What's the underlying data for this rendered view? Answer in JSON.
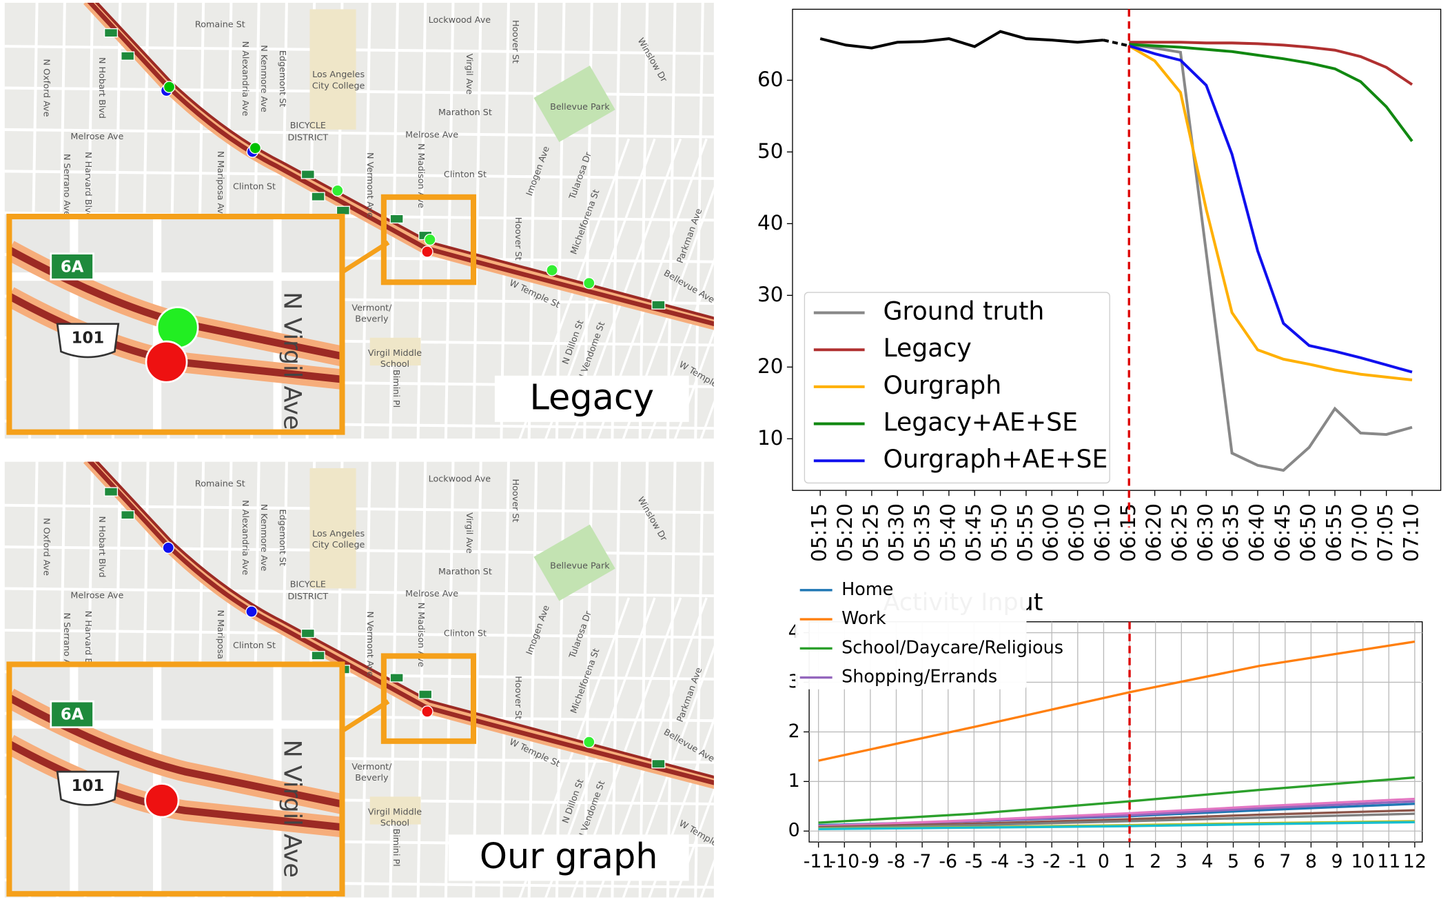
{
  "maps": {
    "streets": [
      "Romaine St",
      "Lockwood Ave",
      "N Oxford Ave",
      "N Hobart Blvd",
      "N Kenmore Ave",
      "N Alexandria Ave",
      "Edgemont St",
      "Los Angeles",
      "City College",
      "Hoover St",
      "Virgil Ave",
      "Winslow Dr",
      "Marathon St",
      "Bellevue Park",
      "BICYCLE",
      "DISTRICT",
      "Melrose Ave",
      "N Serrano Ave",
      "N Harvard Blvd",
      "N Mariposa Ave",
      "N Vermont Ave",
      "N Madison Ave",
      "Clinton St",
      "Imogen Ave",
      "Tularosa Dr",
      "Michelforena St",
      "Parkman Ave",
      "Vermont/",
      "Beverly",
      "W Temple St",
      "Virgil Middle",
      "School",
      "N Dillon St",
      "N Vendome St",
      "Bellevue Ave",
      "W Temple",
      "Bimini Pl"
    ],
    "inset_street": "N Virgil Ave",
    "shield": "101",
    "exit": "6A",
    "captions": [
      "Legacy",
      "Our graph"
    ]
  },
  "chart_data": [
    {
      "type": "line",
      "categories": [
        "05:15",
        "05:20",
        "05:25",
        "05:30",
        "05:35",
        "05:40",
        "05:45",
        "05:50",
        "05:55",
        "06:00",
        "06:05",
        "06:10",
        "06:15",
        "06:20",
        "06:25",
        "06:30",
        "06:35",
        "06:40",
        "06:45",
        "06:50",
        "06:55",
        "07:00",
        "07:05",
        "07:10"
      ],
      "series": [
        {
          "color": "#000000",
          "values": [
            65.8,
            64.9,
            64.5,
            65.3,
            65.4,
            65.8,
            64.7,
            66.8,
            65.8,
            65.6,
            65.3,
            65.6,
            64.8,
            null,
            null,
            null,
            null,
            null,
            null,
            null,
            null,
            null,
            null,
            null
          ]
        },
        {
          "name": "Ground truth",
          "color": "#888888",
          "values": [
            null,
            null,
            null,
            null,
            null,
            null,
            null,
            null,
            null,
            null,
            null,
            null,
            65.0,
            64.5,
            63.9,
            36.0,
            8.0,
            6.3,
            5.6,
            8.8,
            14.2,
            10.8,
            10.6,
            11.6
          ]
        },
        {
          "name": "Legacy",
          "color": "#b03030",
          "values": [
            null,
            null,
            null,
            null,
            null,
            null,
            null,
            null,
            null,
            null,
            null,
            null,
            65.3,
            65.3,
            65.3,
            65.2,
            65.2,
            65.1,
            64.9,
            64.6,
            64.2,
            63.3,
            61.8,
            59.4
          ]
        },
        {
          "name": "Ourgraph",
          "color": "#ffb000",
          "values": [
            null,
            null,
            null,
            null,
            null,
            null,
            null,
            null,
            null,
            null,
            null,
            null,
            64.8,
            62.7,
            58.3,
            42.0,
            27.6,
            22.4,
            21.1,
            20.4,
            19.6,
            19.0,
            18.6,
            18.2
          ]
        },
        {
          "name": "Legacy+AE+SE",
          "color": "#118811",
          "values": [
            null,
            null,
            null,
            null,
            null,
            null,
            null,
            null,
            null,
            null,
            null,
            null,
            65.0,
            64.8,
            64.6,
            64.3,
            64.0,
            63.5,
            63.0,
            62.4,
            61.6,
            59.8,
            56.3,
            51.5
          ]
        },
        {
          "name": "Ourgraph+AE+SE",
          "color": "#1010ee",
          "values": [
            null,
            null,
            null,
            null,
            null,
            null,
            null,
            null,
            null,
            null,
            null,
            null,
            64.8,
            63.7,
            62.8,
            59.3,
            49.7,
            36.2,
            26.1,
            23.0,
            22.2,
            21.3,
            20.3,
            19.3
          ]
        }
      ],
      "ylim": [
        2.8,
        69.9
      ],
      "yticks": [
        10,
        20,
        30,
        40,
        50,
        60
      ],
      "vline": "06:15",
      "vline_color": "#dd0000",
      "legend": "lower left",
      "grid": false
    },
    {
      "type": "line",
      "title": "Activity Input",
      "x": [
        -11,
        -5,
        1,
        6,
        12
      ],
      "series": [
        {
          "name": "Home",
          "color": "#1f77b4",
          "values": [
            0.12,
            0.2,
            0.3,
            0.42,
            0.55
          ]
        },
        {
          "name": "Work",
          "color": "#ff7f0e",
          "values": [
            1.42,
            2.1,
            2.8,
            3.33,
            3.82
          ]
        },
        {
          "name": "School/Daycare/Religious",
          "color": "#2ca02c",
          "values": [
            0.17,
            0.35,
            0.6,
            0.83,
            1.08
          ]
        },
        {
          "name": "Shopping/Errands",
          "color": "#9467bd",
          "values": [
            0.1,
            0.2,
            0.32,
            0.46,
            0.6
          ]
        },
        {
          "color": "#e377c2",
          "values": [
            0.1,
            0.22,
            0.36,
            0.5,
            0.65
          ]
        },
        {
          "color": "#8c564b",
          "values": [
            0.08,
            0.15,
            0.24,
            0.33,
            0.42
          ]
        },
        {
          "color": "#7f7f7f",
          "values": [
            0.06,
            0.12,
            0.2,
            0.27,
            0.35
          ]
        },
        {
          "color": "#bcbd22",
          "values": [
            0.05,
            0.08,
            0.12,
            0.16,
            0.2
          ]
        },
        {
          "color": "#17becf",
          "values": [
            0.04,
            0.07,
            0.1,
            0.14,
            0.18
          ]
        }
      ],
      "xlim": [
        -11.36,
        12.29
      ],
      "xticks": [
        -11,
        -10,
        -9,
        -8,
        -7,
        -6,
        -5,
        -4,
        -3,
        -2,
        -1,
        0,
        1,
        2,
        3,
        4,
        5,
        6,
        7,
        8,
        9,
        10,
        11,
        12
      ],
      "ylim": [
        -0.22,
        4.22
      ],
      "yticks": [
        0,
        1,
        2,
        3,
        4
      ],
      "vline": 1,
      "vline_color": "#dd0000",
      "legend": "upper left",
      "grid": true
    }
  ]
}
